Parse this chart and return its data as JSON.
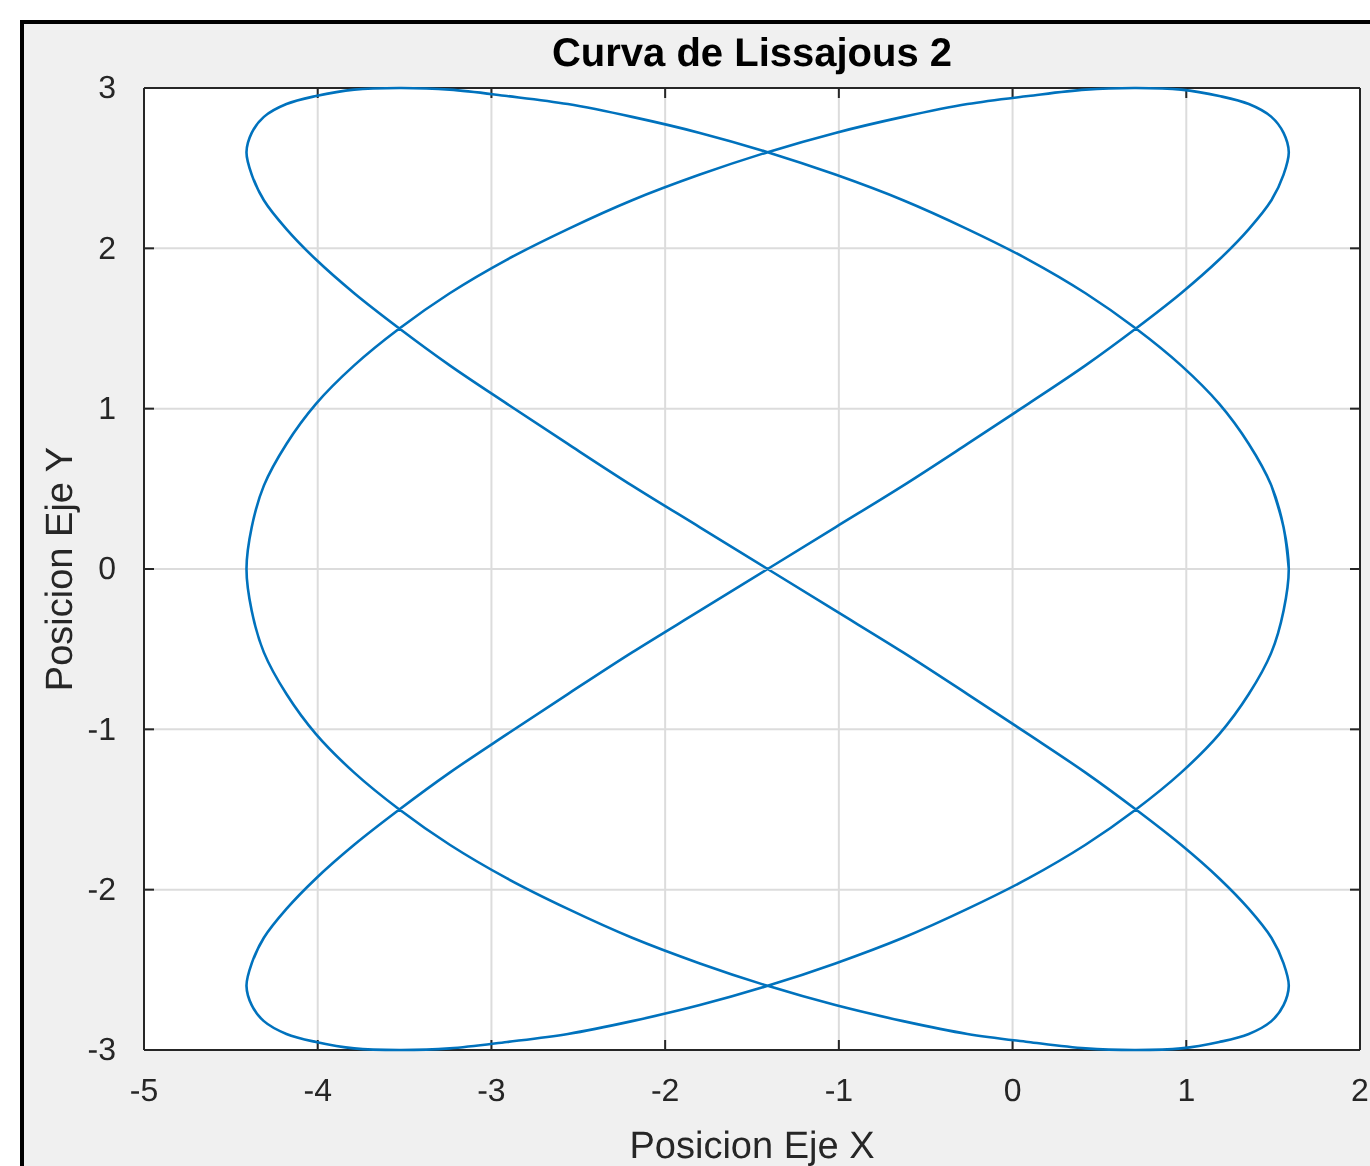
{
  "chart_data": {
    "type": "line",
    "title": "Curva de Lissajous 2",
    "xlabel": "Posicion Eje X",
    "ylabel": "Posicion Eje Y",
    "xlim": [
      -5,
      2
    ],
    "xticks": [
      -5,
      -4,
      -3,
      -2,
      -1,
      0,
      1,
      2
    ],
    "ylim": [
      -3,
      3
    ],
    "yticks": [
      -3,
      -2,
      -1,
      0,
      1,
      2,
      3
    ],
    "grid": true,
    "series": [
      {
        "color": "#0072bd",
        "x": [
          1.59,
          1.56,
          1.49,
          1.36,
          1.19,
          0.97,
          0.71,
          0.42,
          0.09,
          -0.26,
          -0.63,
          -1.02,
          -1.41,
          -1.8,
          -2.19,
          -2.56,
          -2.91,
          -3.24,
          -3.53,
          -3.79,
          -4.01,
          -4.18,
          -4.31,
          -4.38,
          -4.41,
          -4.38,
          -4.31,
          -4.18,
          -4.01,
          -3.79,
          -3.53,
          -3.24,
          -2.91,
          -2.56,
          -2.19,
          -1.8,
          -1.41,
          -1.02,
          -0.63,
          -0.26,
          0.09,
          0.42,
          0.71,
          0.97,
          1.19,
          1.36,
          1.49,
          1.56,
          1.59,
          1.56,
          1.49,
          1.36,
          1.19,
          0.97,
          0.71,
          0.42,
          0.09,
          -0.26,
          -0.63,
          -1.02,
          -1.41,
          -1.8,
          -2.19,
          -2.56,
          -2.91,
          -3.24,
          -3.53,
          -3.79,
          -4.01,
          -4.18,
          -4.31,
          -4.38,
          -4.41,
          -4.38,
          -4.31,
          -4.18,
          -4.01,
          -3.79,
          -3.53,
          -3.24,
          -2.91,
          -2.56,
          -2.19,
          -1.8,
          -1.41,
          -1.02,
          -0.63,
          -0.26,
          0.09,
          0.42,
          0.71,
          0.97,
          1.19,
          1.36,
          1.49,
          1.56,
          1.59,
          1.56,
          1.49,
          1.36,
          1.19,
          0.97,
          0.71,
          0.42,
          0.09,
          -0.26,
          -0.63,
          -1.02,
          -1.41,
          -1.8,
          -2.19,
          -2.56,
          -2.91,
          -3.24,
          -3.53,
          -3.79,
          -4.01,
          -4.18,
          -4.31,
          -4.38,
          -4.41,
          -4.38,
          -4.31,
          -4.18,
          -4.01,
          -3.79,
          -3.53,
          -3.24,
          -2.91,
          -2.56,
          -2.19,
          -1.8,
          -1.41,
          -1.02,
          -0.63,
          -0.26,
          0.09,
          0.42,
          0.71,
          0.97,
          1.19,
          1.36,
          1.49,
          1.56,
          1.59,
          1.56,
          1.49
        ],
        "values": [
          0,
          0.26,
          0.52,
          0.78,
          1.03,
          1.27,
          1.5,
          1.72,
          1.93,
          2.12,
          2.3,
          2.46,
          2.6,
          2.72,
          2.82,
          2.9,
          2.95,
          2.99,
          3,
          2.99,
          2.95,
          2.9,
          2.82,
          2.72,
          2.6,
          2.46,
          2.3,
          2.12,
          1.93,
          1.72,
          1.5,
          1.27,
          1.03,
          0.78,
          0.52,
          0.26,
          0,
          -0.26,
          -0.52,
          -0.78,
          -1.03,
          -1.27,
          -1.5,
          -1.72,
          -1.93,
          -2.12,
          -2.3,
          -2.46,
          -2.6,
          -2.72,
          -2.82,
          -2.9,
          -2.95,
          -2.99,
          -3,
          -2.99,
          -2.95,
          -2.9,
          -2.82,
          -2.72,
          -2.6,
          -2.46,
          -2.3,
          -2.12,
          -1.93,
          -1.72,
          -1.5,
          -1.27,
          -1.03,
          -0.78,
          -0.52,
          -0.26,
          0,
          0.26,
          0.52,
          0.78,
          1.03,
          1.27,
          1.5,
          1.72,
          1.93,
          2.12,
          2.3,
          2.46,
          2.6,
          2.72,
          2.82,
          2.9,
          2.95,
          2.99,
          3,
          2.99,
          2.95,
          2.9,
          2.82,
          2.72,
          2.6,
          2.46,
          2.3,
          2.12,
          1.93,
          1.72,
          1.5,
          1.27,
          1.03,
          0.78,
          0.52,
          0.26,
          0,
          -0.26,
          -0.52,
          -0.78,
          -1.03,
          -1.27,
          -1.5,
          -1.72,
          -1.93,
          -2.12,
          -2.3,
          -2.46,
          -2.6,
          -2.72,
          -2.82,
          -2.9,
          -2.95,
          -2.99,
          -3,
          -2.99,
          -2.95,
          -2.9,
          -2.82,
          -2.72,
          -2.6,
          -2.46,
          -2.3,
          -2.12,
          -1.93,
          -1.72,
          -1.5,
          -1.27,
          -1.03,
          -0.78,
          -0.52,
          -0.26,
          0,
          0.26,
          0.52
        ]
      }
    ]
  }
}
